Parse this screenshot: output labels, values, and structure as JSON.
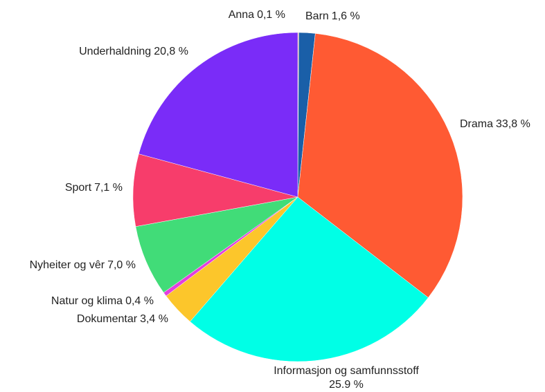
{
  "chart_data": {
    "type": "pie",
    "categories": [
      "Anna",
      "Barn",
      "Drama",
      "Informasjon og samfunnsstoff",
      "Dokumentar",
      "Natur og klima",
      "Nyheiter og vêr",
      "Sport",
      "Underhaldning"
    ],
    "values": [
      0.1,
      1.6,
      33.8,
      25.9,
      3.4,
      0.4,
      7.0,
      7.1,
      20.8
    ],
    "value_labels": [
      "0,1 %",
      "1,6 %",
      "33,8 %",
      "25.9 %",
      "3,4 %",
      "0,4 %",
      "7,0 %",
      "7,1 %",
      "20,8 %"
    ],
    "colors": [
      "#f2a48c",
      "#1a5fa8",
      "#ff5a33",
      "#00ffe6",
      "#fcc62b",
      "#e23fe0",
      "#41dc78",
      "#f73d6b",
      "#7a2cf8"
    ]
  }
}
